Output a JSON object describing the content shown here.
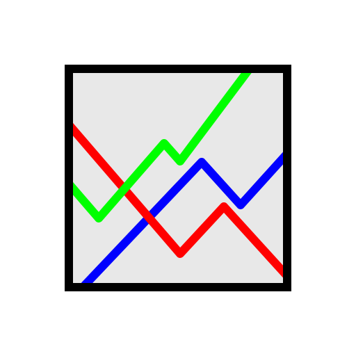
{
  "icon": {
    "name": "line-chart-icon",
    "colors": {
      "background": "#ffffff",
      "frame": "#000000",
      "plot_area": "#e8e8e8",
      "line_green": "#00ff00",
      "line_red": "#ff0000",
      "line_blue": "#0000ff"
    }
  }
}
